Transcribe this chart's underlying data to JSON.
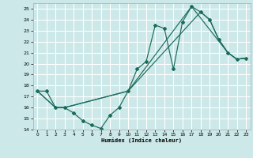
{
  "title": "",
  "xlabel": "Humidex (Indice chaleur)",
  "xlim": [
    -0.5,
    23.5
  ],
  "ylim": [
    14,
    25.5
  ],
  "yticks": [
    14,
    15,
    16,
    17,
    18,
    19,
    20,
    21,
    22,
    23,
    24,
    25
  ],
  "xticks": [
    0,
    1,
    2,
    3,
    4,
    5,
    6,
    7,
    8,
    9,
    10,
    11,
    12,
    13,
    14,
    15,
    16,
    17,
    18,
    19,
    20,
    21,
    22,
    23
  ],
  "background_color": "#cce8e8",
  "grid_color": "#ffffff",
  "line_color": "#1a6b5a",
  "line1_x": [
    0,
    1,
    2,
    3,
    4,
    5,
    6,
    7,
    8,
    9,
    10,
    11,
    12,
    13,
    14,
    15,
    16,
    17,
    18,
    19,
    20,
    21,
    22,
    23
  ],
  "line1_y": [
    17.5,
    17.5,
    16.0,
    16.0,
    15.5,
    14.8,
    14.4,
    14.1,
    15.3,
    16.0,
    17.5,
    19.5,
    20.2,
    23.5,
    23.2,
    19.5,
    23.8,
    25.2,
    24.7,
    24.0,
    22.2,
    21.0,
    20.4,
    20.5
  ],
  "line2_x": [
    0,
    2,
    3,
    10,
    17,
    21,
    22,
    23
  ],
  "line2_y": [
    17.5,
    16.0,
    16.0,
    17.5,
    25.2,
    21.0,
    20.4,
    20.5
  ],
  "line3_x": [
    0,
    2,
    3,
    10,
    18,
    19,
    20,
    21,
    22,
    23
  ],
  "line3_y": [
    17.5,
    16.0,
    16.0,
    17.5,
    24.7,
    24.0,
    22.2,
    21.0,
    20.4,
    20.5
  ]
}
